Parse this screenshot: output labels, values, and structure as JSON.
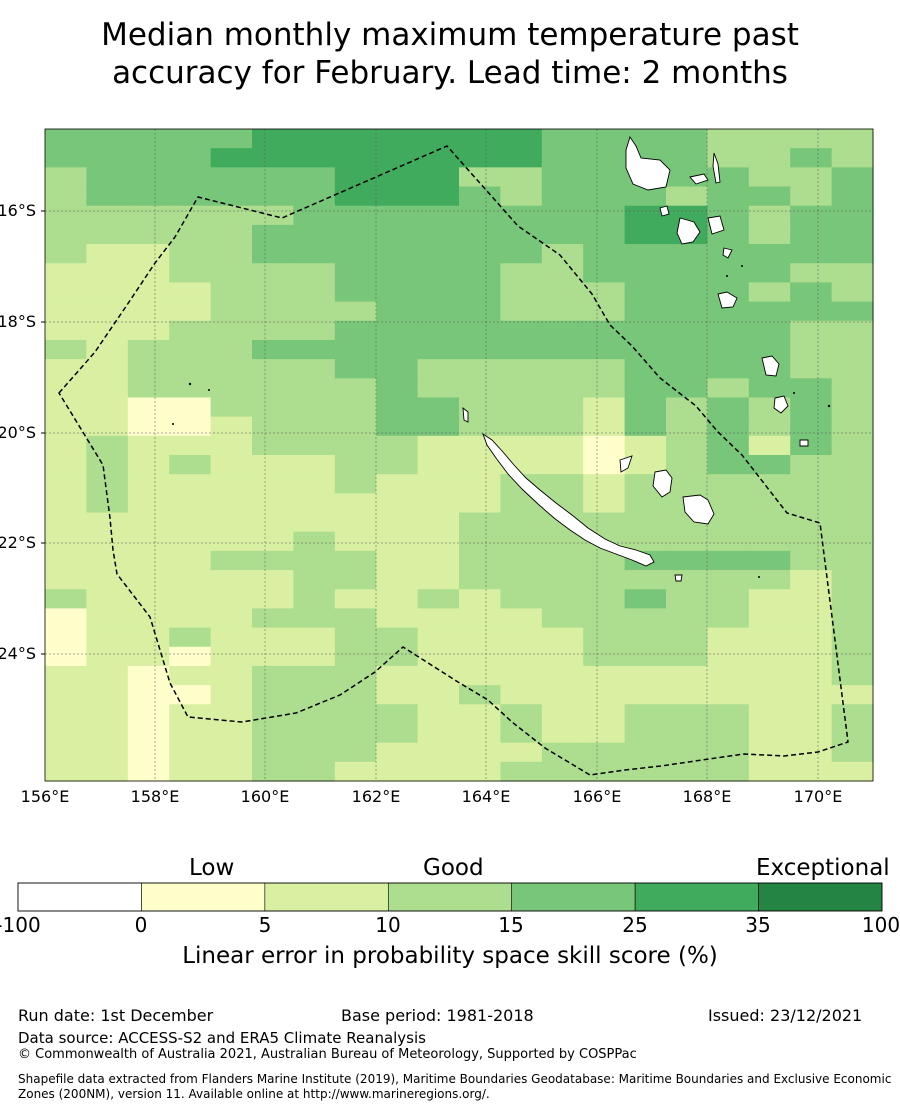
{
  "title_line1": "Median monthly maximum temperature past",
  "title_line2": "accuracy for February. Lead time: 2 months",
  "map": {
    "lat_ticks": [
      "16°S",
      "18°S",
      "20°S",
      "22°S",
      "24°S"
    ],
    "lon_ticks": [
      "156°E",
      "158°E",
      "160°E",
      "162°E",
      "164°E",
      "166°E",
      "168°E",
      "170°E"
    ],
    "land_color": "#ffffff",
    "boundary_style": "dashed",
    "grid_levels": [
      "33333444444433332222",
      "33334444444433332232",
      "23333334442233333223",
      "23333334443233323323",
      "22222233333333443233",
      "22222333333333443233",
      "21122333333323333333",
      "11122223333223333322",
      "11112223333222333232",
      "11112222333222333333",
      "11122223333333333322",
      "21222333333333333322",
      "11222223322222333322",
      "11222222322222332332",
      "11002222332221323232",
      "11001222332221323232",
      "12111222211110123132",
      "12121112211110123322",
      "12111112111221222222",
      "12111111111221222222",
      "11111111112222222222",
      "11111121112222222222",
      "11112222112222333322",
      "11111122112222222212",
      "21111121121222322112",
      "01111222111122222112",
      "01121112211112221112",
      "01101112211112221112",
      "11011222111111111112",
      "11001222112111111111",
      "11011222211211222112",
      "11011222211211222112",
      "11011222111122222112",
      "11011221111222222111"
    ]
  },
  "legend": {
    "quality_labels": [
      "Low",
      "Good",
      "Exceptional"
    ],
    "bins": [
      {
        "from": "-100",
        "to": "0",
        "color": "#ffffff"
      },
      {
        "from": "0",
        "to": "5",
        "color": "#ffffcc"
      },
      {
        "from": "5",
        "to": "10",
        "color": "#d9f0a3"
      },
      {
        "from": "10",
        "to": "15",
        "color": "#addd8e"
      },
      {
        "from": "15",
        "to": "25",
        "color": "#78c679"
      },
      {
        "from": "25",
        "to": "35",
        "color": "#41ab5d"
      },
      {
        "from": "35",
        "to": "100",
        "color": "#238443"
      }
    ],
    "ticks": [
      "-100",
      "0",
      "5",
      "10",
      "15",
      "25",
      "35",
      "100"
    ],
    "label": "Linear error in probability space skill score (%)"
  },
  "footer": {
    "run_date": "Run date: 1st December",
    "base_period": "Base period: 1981-2018",
    "issued": "Issued: 23/12/2021",
    "data_source": "Data source: ACCESS-S2 and ERA5 Climate Reanalysis",
    "copyright": "© Commonwealth of Australia 2021, Australian Bureau of Meteorology, Supported by COSPPac",
    "shapefile": "Shapefile data extracted from Flanders Marine Institute (2019), Maritime Boundaries Geodatabase: Maritime Boundaries and Exclusive Economic Zones (200NM), version 11. Available online at http://www.marineregions.org/."
  }
}
